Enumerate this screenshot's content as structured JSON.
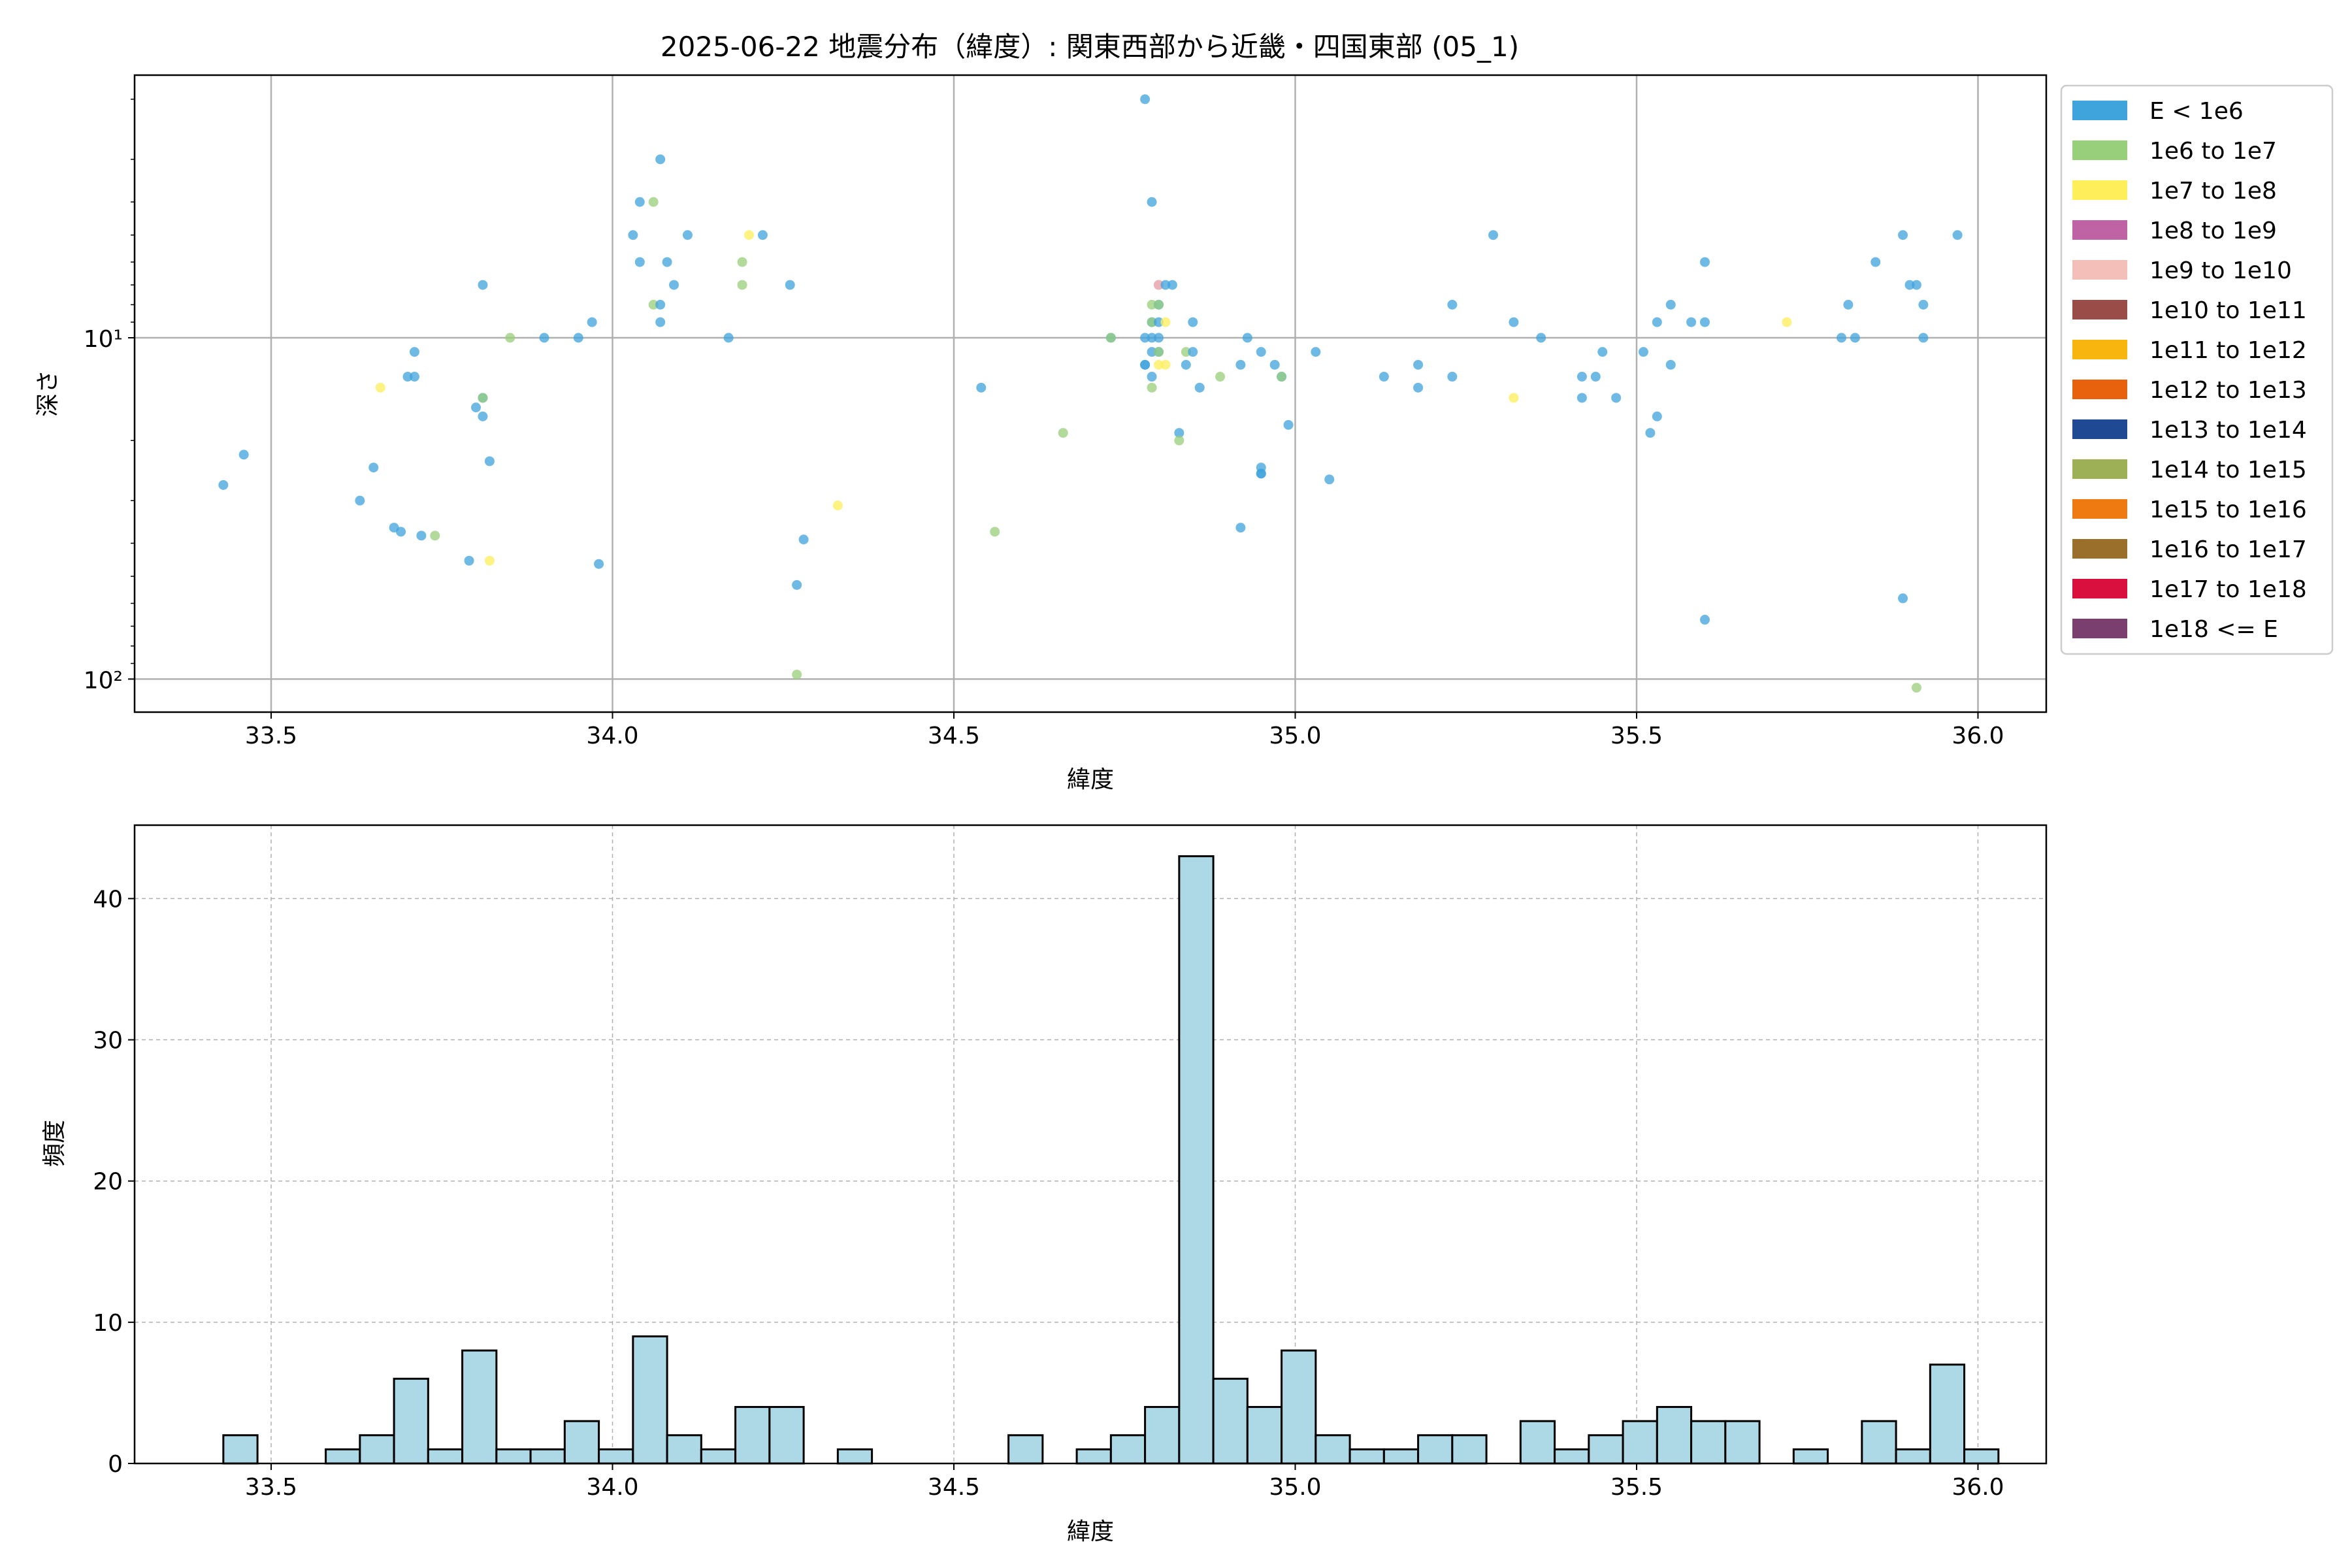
{
  "chart_data": [
    {
      "type": "scatter",
      "title": "2025-06-22 地震分布（緯度）: 関東西部から近畿・四国東部 (05_1)",
      "xlabel": "緯度",
      "ylabel": "深さ",
      "xlim": [
        33.3,
        36.1
      ],
      "ylim": [
        125,
        1.7
      ],
      "yscale": "log",
      "yaxis_inverted": true,
      "xticks": [
        33.5,
        34.0,
        34.5,
        35.0,
        35.5,
        36.0
      ],
      "xtick_labels": [
        "33.5",
        "34.0",
        "34.5",
        "35.0",
        "35.5",
        "36.0"
      ],
      "yticks": [
        10,
        100
      ],
      "ytick_labels": [
        "10¹",
        "10²"
      ],
      "grid": true,
      "legend_position": "outside-right",
      "legend": [
        {
          "label": "E < 1e6",
          "color": "#3fa3dc"
        },
        {
          "label": "1e6 to 1e7",
          "color": "#98cf7a"
        },
        {
          "label": "1e7 to 1e8",
          "color": "#fdee5a"
        },
        {
          "label": "1e8 to 1e9",
          "color": "#bf63a4"
        },
        {
          "label": "1e9 to 1e10",
          "color": "#f5bfb9"
        },
        {
          "label": "1e10 to 1e11",
          "color": "#9a4d48"
        },
        {
          "label": "1e11 to 1e12",
          "color": "#f8b40f"
        },
        {
          "label": "1e12 to 1e13",
          "color": "#e8620e"
        },
        {
          "label": "1e13 to 1e14",
          "color": "#1f4a93"
        },
        {
          "label": "1e14 to 1e15",
          "color": "#9db055"
        },
        {
          "label": "1e15 to 1e16",
          "color": "#f07a12"
        },
        {
          "label": "1e16 to 1e17",
          "color": "#9a6f2c"
        },
        {
          "label": "1e17 to 1e18",
          "color": "#d90f3d"
        },
        {
          "label": "1e18 <= E",
          "color": "#7a3f6f"
        }
      ],
      "points": [
        {
          "x": 33.43,
          "y": 27,
          "c": 0
        },
        {
          "x": 33.46,
          "y": 22,
          "c": 0
        },
        {
          "x": 33.63,
          "y": 30,
          "c": 0
        },
        {
          "x": 33.65,
          "y": 24,
          "c": 0
        },
        {
          "x": 33.66,
          "y": 14,
          "c": 2
        },
        {
          "x": 33.68,
          "y": 36,
          "c": 0
        },
        {
          "x": 33.69,
          "y": 37,
          "c": 0
        },
        {
          "x": 33.7,
          "y": 13,
          "c": 0
        },
        {
          "x": 33.71,
          "y": 13,
          "c": 0
        },
        {
          "x": 33.71,
          "y": 11,
          "c": 0
        },
        {
          "x": 33.72,
          "y": 38,
          "c": 0
        },
        {
          "x": 33.74,
          "y": 38,
          "c": 1
        },
        {
          "x": 33.79,
          "y": 45,
          "c": 0
        },
        {
          "x": 33.8,
          "y": 16,
          "c": 0
        },
        {
          "x": 33.81,
          "y": 17,
          "c": 0
        },
        {
          "x": 33.81,
          "y": 15,
          "c": 0
        },
        {
          "x": 33.81,
          "y": 15,
          "c": 1
        },
        {
          "x": 33.81,
          "y": 7,
          "c": 0
        },
        {
          "x": 33.82,
          "y": 45,
          "c": 2
        },
        {
          "x": 33.82,
          "y": 23,
          "c": 0
        },
        {
          "x": 33.85,
          "y": 10,
          "c": 1
        },
        {
          "x": 33.9,
          "y": 10,
          "c": 0
        },
        {
          "x": 33.95,
          "y": 10,
          "c": 0
        },
        {
          "x": 33.97,
          "y": 9,
          "c": 0
        },
        {
          "x": 33.98,
          "y": 46,
          "c": 0
        },
        {
          "x": 34.03,
          "y": 5,
          "c": 0
        },
        {
          "x": 34.04,
          "y": 6,
          "c": 0
        },
        {
          "x": 34.04,
          "y": 4,
          "c": 0
        },
        {
          "x": 34.06,
          "y": 4,
          "c": 1
        },
        {
          "x": 34.06,
          "y": 8,
          "c": 1
        },
        {
          "x": 34.07,
          "y": 9,
          "c": 0
        },
        {
          "x": 34.07,
          "y": 3,
          "c": 0
        },
        {
          "x": 34.07,
          "y": 8,
          "c": 0
        },
        {
          "x": 34.08,
          "y": 6,
          "c": 0
        },
        {
          "x": 34.09,
          "y": 7,
          "c": 0
        },
        {
          "x": 34.11,
          "y": 5,
          "c": 0
        },
        {
          "x": 34.17,
          "y": 10,
          "c": 0
        },
        {
          "x": 34.19,
          "y": 6,
          "c": 1
        },
        {
          "x": 34.19,
          "y": 7,
          "c": 1
        },
        {
          "x": 34.2,
          "y": 5,
          "c": 2
        },
        {
          "x": 34.22,
          "y": 5,
          "c": 0
        },
        {
          "x": 34.26,
          "y": 7,
          "c": 0
        },
        {
          "x": 34.27,
          "y": 97,
          "c": 1
        },
        {
          "x": 34.27,
          "y": 53,
          "c": 0
        },
        {
          "x": 34.28,
          "y": 39,
          "c": 0
        },
        {
          "x": 34.33,
          "y": 31,
          "c": 2
        },
        {
          "x": 34.54,
          "y": 14,
          "c": 0
        },
        {
          "x": 34.56,
          "y": 37,
          "c": 1
        },
        {
          "x": 34.66,
          "y": 19,
          "c": 1
        },
        {
          "x": 34.73,
          "y": 10,
          "c": 0
        },
        {
          "x": 34.73,
          "y": 10,
          "c": 1
        },
        {
          "x": 34.78,
          "y": 2,
          "c": 0
        },
        {
          "x": 34.78,
          "y": 10,
          "c": 0
        },
        {
          "x": 34.78,
          "y": 12,
          "c": 0
        },
        {
          "x": 34.78,
          "y": 12,
          "c": 0
        },
        {
          "x": 34.79,
          "y": 4,
          "c": 0
        },
        {
          "x": 34.79,
          "y": 9,
          "c": 0
        },
        {
          "x": 34.79,
          "y": 10,
          "c": 0
        },
        {
          "x": 34.79,
          "y": 11,
          "c": 0
        },
        {
          "x": 34.79,
          "y": 13,
          "c": 0
        },
        {
          "x": 34.79,
          "y": 14,
          "c": 1
        },
        {
          "x": 34.79,
          "y": 8,
          "c": 1
        },
        {
          "x": 34.79,
          "y": 9,
          "c": 1
        },
        {
          "x": 34.8,
          "y": 7,
          "c": 3
        },
        {
          "x": 34.8,
          "y": 7,
          "c": 4
        },
        {
          "x": 34.8,
          "y": 8,
          "c": 0
        },
        {
          "x": 34.8,
          "y": 9,
          "c": 0
        },
        {
          "x": 34.8,
          "y": 10,
          "c": 0
        },
        {
          "x": 34.8,
          "y": 11,
          "c": 0
        },
        {
          "x": 34.8,
          "y": 8,
          "c": 1
        },
        {
          "x": 34.8,
          "y": 11,
          "c": 1
        },
        {
          "x": 34.8,
          "y": 12,
          "c": 2
        },
        {
          "x": 34.81,
          "y": 7,
          "c": 0
        },
        {
          "x": 34.81,
          "y": 9,
          "c": 2
        },
        {
          "x": 34.81,
          "y": 12,
          "c": 2
        },
        {
          "x": 34.82,
          "y": 7,
          "c": 0
        },
        {
          "x": 34.83,
          "y": 19,
          "c": 0
        },
        {
          "x": 34.83,
          "y": 20,
          "c": 1
        },
        {
          "x": 34.84,
          "y": 12,
          "c": 0
        },
        {
          "x": 34.84,
          "y": 11,
          "c": 1
        },
        {
          "x": 34.85,
          "y": 9,
          "c": 0
        },
        {
          "x": 34.85,
          "y": 11,
          "c": 0
        },
        {
          "x": 34.86,
          "y": 14,
          "c": 0
        },
        {
          "x": 34.89,
          "y": 13,
          "c": 1
        },
        {
          "x": 34.92,
          "y": 36,
          "c": 0
        },
        {
          "x": 34.92,
          "y": 12,
          "c": 0
        },
        {
          "x": 34.93,
          "y": 10,
          "c": 0
        },
        {
          "x": 34.95,
          "y": 25,
          "c": 0
        },
        {
          "x": 34.95,
          "y": 25,
          "c": 0
        },
        {
          "x": 34.95,
          "y": 24,
          "c": 0
        },
        {
          "x": 34.95,
          "y": 11,
          "c": 0
        },
        {
          "x": 34.97,
          "y": 12,
          "c": 0
        },
        {
          "x": 34.98,
          "y": 13,
          "c": 0
        },
        {
          "x": 34.98,
          "y": 13,
          "c": 1
        },
        {
          "x": 34.99,
          "y": 18,
          "c": 0
        },
        {
          "x": 35.03,
          "y": 11,
          "c": 0
        },
        {
          "x": 35.05,
          "y": 26,
          "c": 0
        },
        {
          "x": 35.13,
          "y": 13,
          "c": 0
        },
        {
          "x": 35.18,
          "y": 12,
          "c": 0
        },
        {
          "x": 35.18,
          "y": 14,
          "c": 0
        },
        {
          "x": 35.23,
          "y": 8,
          "c": 0
        },
        {
          "x": 35.23,
          "y": 13,
          "c": 0
        },
        {
          "x": 35.29,
          "y": 5,
          "c": 0
        },
        {
          "x": 35.32,
          "y": 9,
          "c": 0
        },
        {
          "x": 35.32,
          "y": 15,
          "c": 2
        },
        {
          "x": 35.36,
          "y": 10,
          "c": 0
        },
        {
          "x": 35.42,
          "y": 13,
          "c": 0
        },
        {
          "x": 35.42,
          "y": 15,
          "c": 0
        },
        {
          "x": 35.44,
          "y": 13,
          "c": 0
        },
        {
          "x": 35.45,
          "y": 11,
          "c": 0
        },
        {
          "x": 35.47,
          "y": 15,
          "c": 0
        },
        {
          "x": 35.51,
          "y": 11,
          "c": 0
        },
        {
          "x": 35.52,
          "y": 19,
          "c": 0
        },
        {
          "x": 35.53,
          "y": 9,
          "c": 0
        },
        {
          "x": 35.53,
          "y": 17,
          "c": 0
        },
        {
          "x": 35.55,
          "y": 8,
          "c": 0
        },
        {
          "x": 35.55,
          "y": 12,
          "c": 0
        },
        {
          "x": 35.58,
          "y": 9,
          "c": 0
        },
        {
          "x": 35.6,
          "y": 6,
          "c": 0
        },
        {
          "x": 35.6,
          "y": 9,
          "c": 0
        },
        {
          "x": 35.6,
          "y": 67,
          "c": 0
        },
        {
          "x": 35.72,
          "y": 9,
          "c": 2
        },
        {
          "x": 35.8,
          "y": 10,
          "c": 0
        },
        {
          "x": 35.81,
          "y": 8,
          "c": 0
        },
        {
          "x": 35.82,
          "y": 10,
          "c": 0
        },
        {
          "x": 35.85,
          "y": 6,
          "c": 0
        },
        {
          "x": 35.89,
          "y": 5,
          "c": 0
        },
        {
          "x": 35.89,
          "y": 58,
          "c": 0
        },
        {
          "x": 35.9,
          "y": 7,
          "c": 0
        },
        {
          "x": 35.91,
          "y": 7,
          "c": 0
        },
        {
          "x": 35.91,
          "y": 106,
          "c": 1
        },
        {
          "x": 35.92,
          "y": 8,
          "c": 0
        },
        {
          "x": 35.92,
          "y": 10,
          "c": 0
        },
        {
          "x": 35.97,
          "y": 5,
          "c": 0
        }
      ]
    },
    {
      "type": "bar",
      "title": "",
      "xlabel": "緯度",
      "ylabel": "頻度",
      "xlim": [
        33.3,
        36.1
      ],
      "ylim": [
        0,
        45.2
      ],
      "xticks": [
        33.5,
        34.0,
        34.5,
        35.0,
        35.5,
        36.0
      ],
      "xtick_labels": [
        "33.5",
        "34.0",
        "34.5",
        "35.0",
        "35.5",
        "36.0"
      ],
      "yticks": [
        0,
        10,
        20,
        30,
        40
      ],
      "ytick_labels": [
        "0",
        "10",
        "20",
        "30",
        "40"
      ],
      "grid": true,
      "bar_color": "#add8e6",
      "bin_start": 33.43,
      "bin_width": 0.05,
      "values": [
        2,
        0,
        0,
        1,
        2,
        6,
        1,
        8,
        1,
        1,
        3,
        1,
        9,
        2,
        1,
        4,
        4,
        0,
        1,
        0,
        0,
        0,
        0,
        2,
        0,
        1,
        2,
        4,
        43,
        6,
        4,
        8,
        2,
        1,
        1,
        2,
        2,
        0,
        3,
        1,
        2,
        3,
        4,
        3,
        3,
        0,
        1,
        0,
        3,
        1,
        7,
        1
      ]
    }
  ]
}
